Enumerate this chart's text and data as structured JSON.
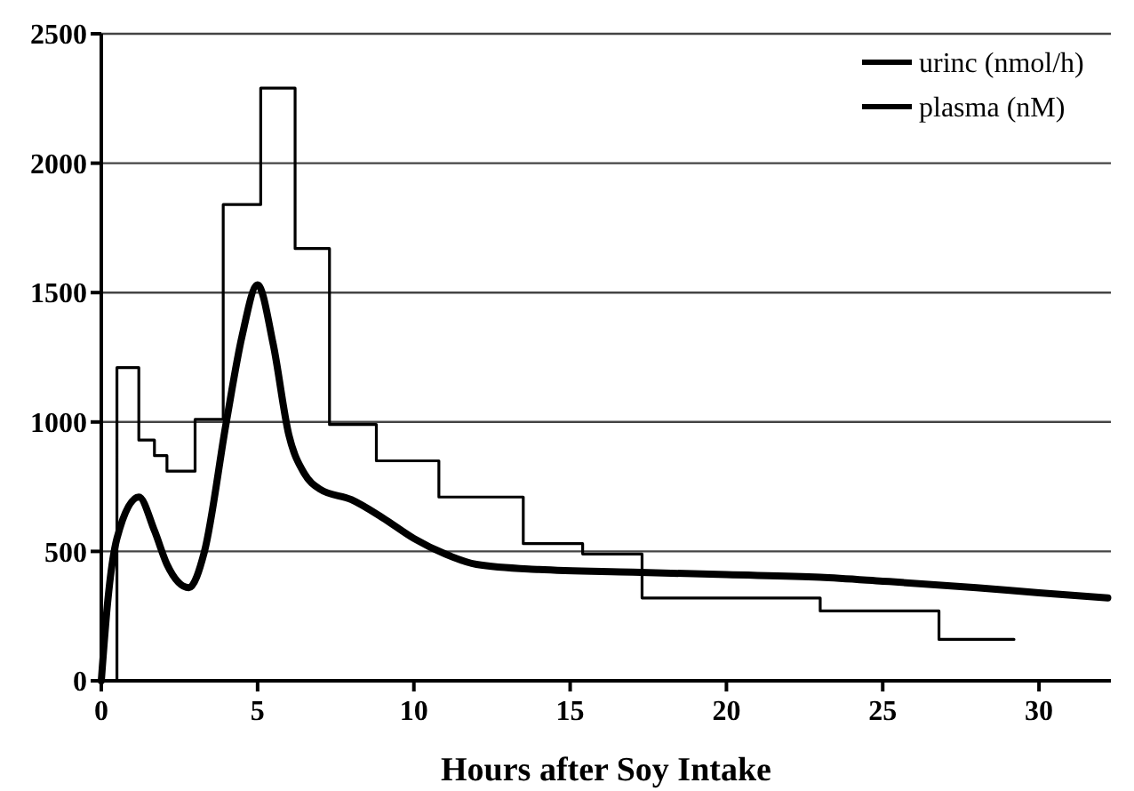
{
  "chart_data": {
    "type": "line",
    "xlabel": "Hours after Soy Intake",
    "xlim": [
      0,
      32.3
    ],
    "xticks": [
      0,
      5,
      10,
      15,
      20,
      25,
      30
    ],
    "ylim": [
      0,
      2500
    ],
    "yticks": [
      0,
      500,
      1000,
      1500,
      2000,
      2500
    ],
    "grid": "y",
    "legend": "top right",
    "line_style": "solid",
    "marker": "none",
    "series": [
      {
        "name": "urinc (nmol/h)",
        "type": "step",
        "color": "#000000",
        "x": [
          0.5,
          0.5,
          1.2,
          1.7,
          2.1,
          3.0,
          3.9,
          5.1,
          6.2,
          7.3,
          8.8,
          10.8,
          13.5,
          15.4,
          17.3,
          23.0,
          26.8,
          29.2
        ],
        "values": [
          0,
          1210,
          930,
          870,
          810,
          1010,
          1840,
          2290,
          1670,
          990,
          850,
          710,
          530,
          490,
          320,
          270,
          160,
          160
        ]
      },
      {
        "name": "plasma (nM)",
        "color": "#000000",
        "x": [
          0,
          0.2,
          0.5,
          1.2,
          1.7,
          2.1,
          2.8,
          3.3,
          4,
          4.5,
          5,
          5.5,
          6,
          6.5,
          7,
          8,
          9,
          10,
          11,
          12,
          14,
          17,
          20,
          23,
          25,
          28,
          30,
          32.2
        ],
        "values": [
          0,
          300,
          550,
          710,
          580,
          450,
          360,
          500,
          1000,
          1330,
          1530,
          1300,
          950,
          800,
          740,
          700,
          630,
          550,
          490,
          450,
          430,
          420,
          410,
          400,
          385,
          360,
          340,
          320
        ]
      }
    ]
  }
}
